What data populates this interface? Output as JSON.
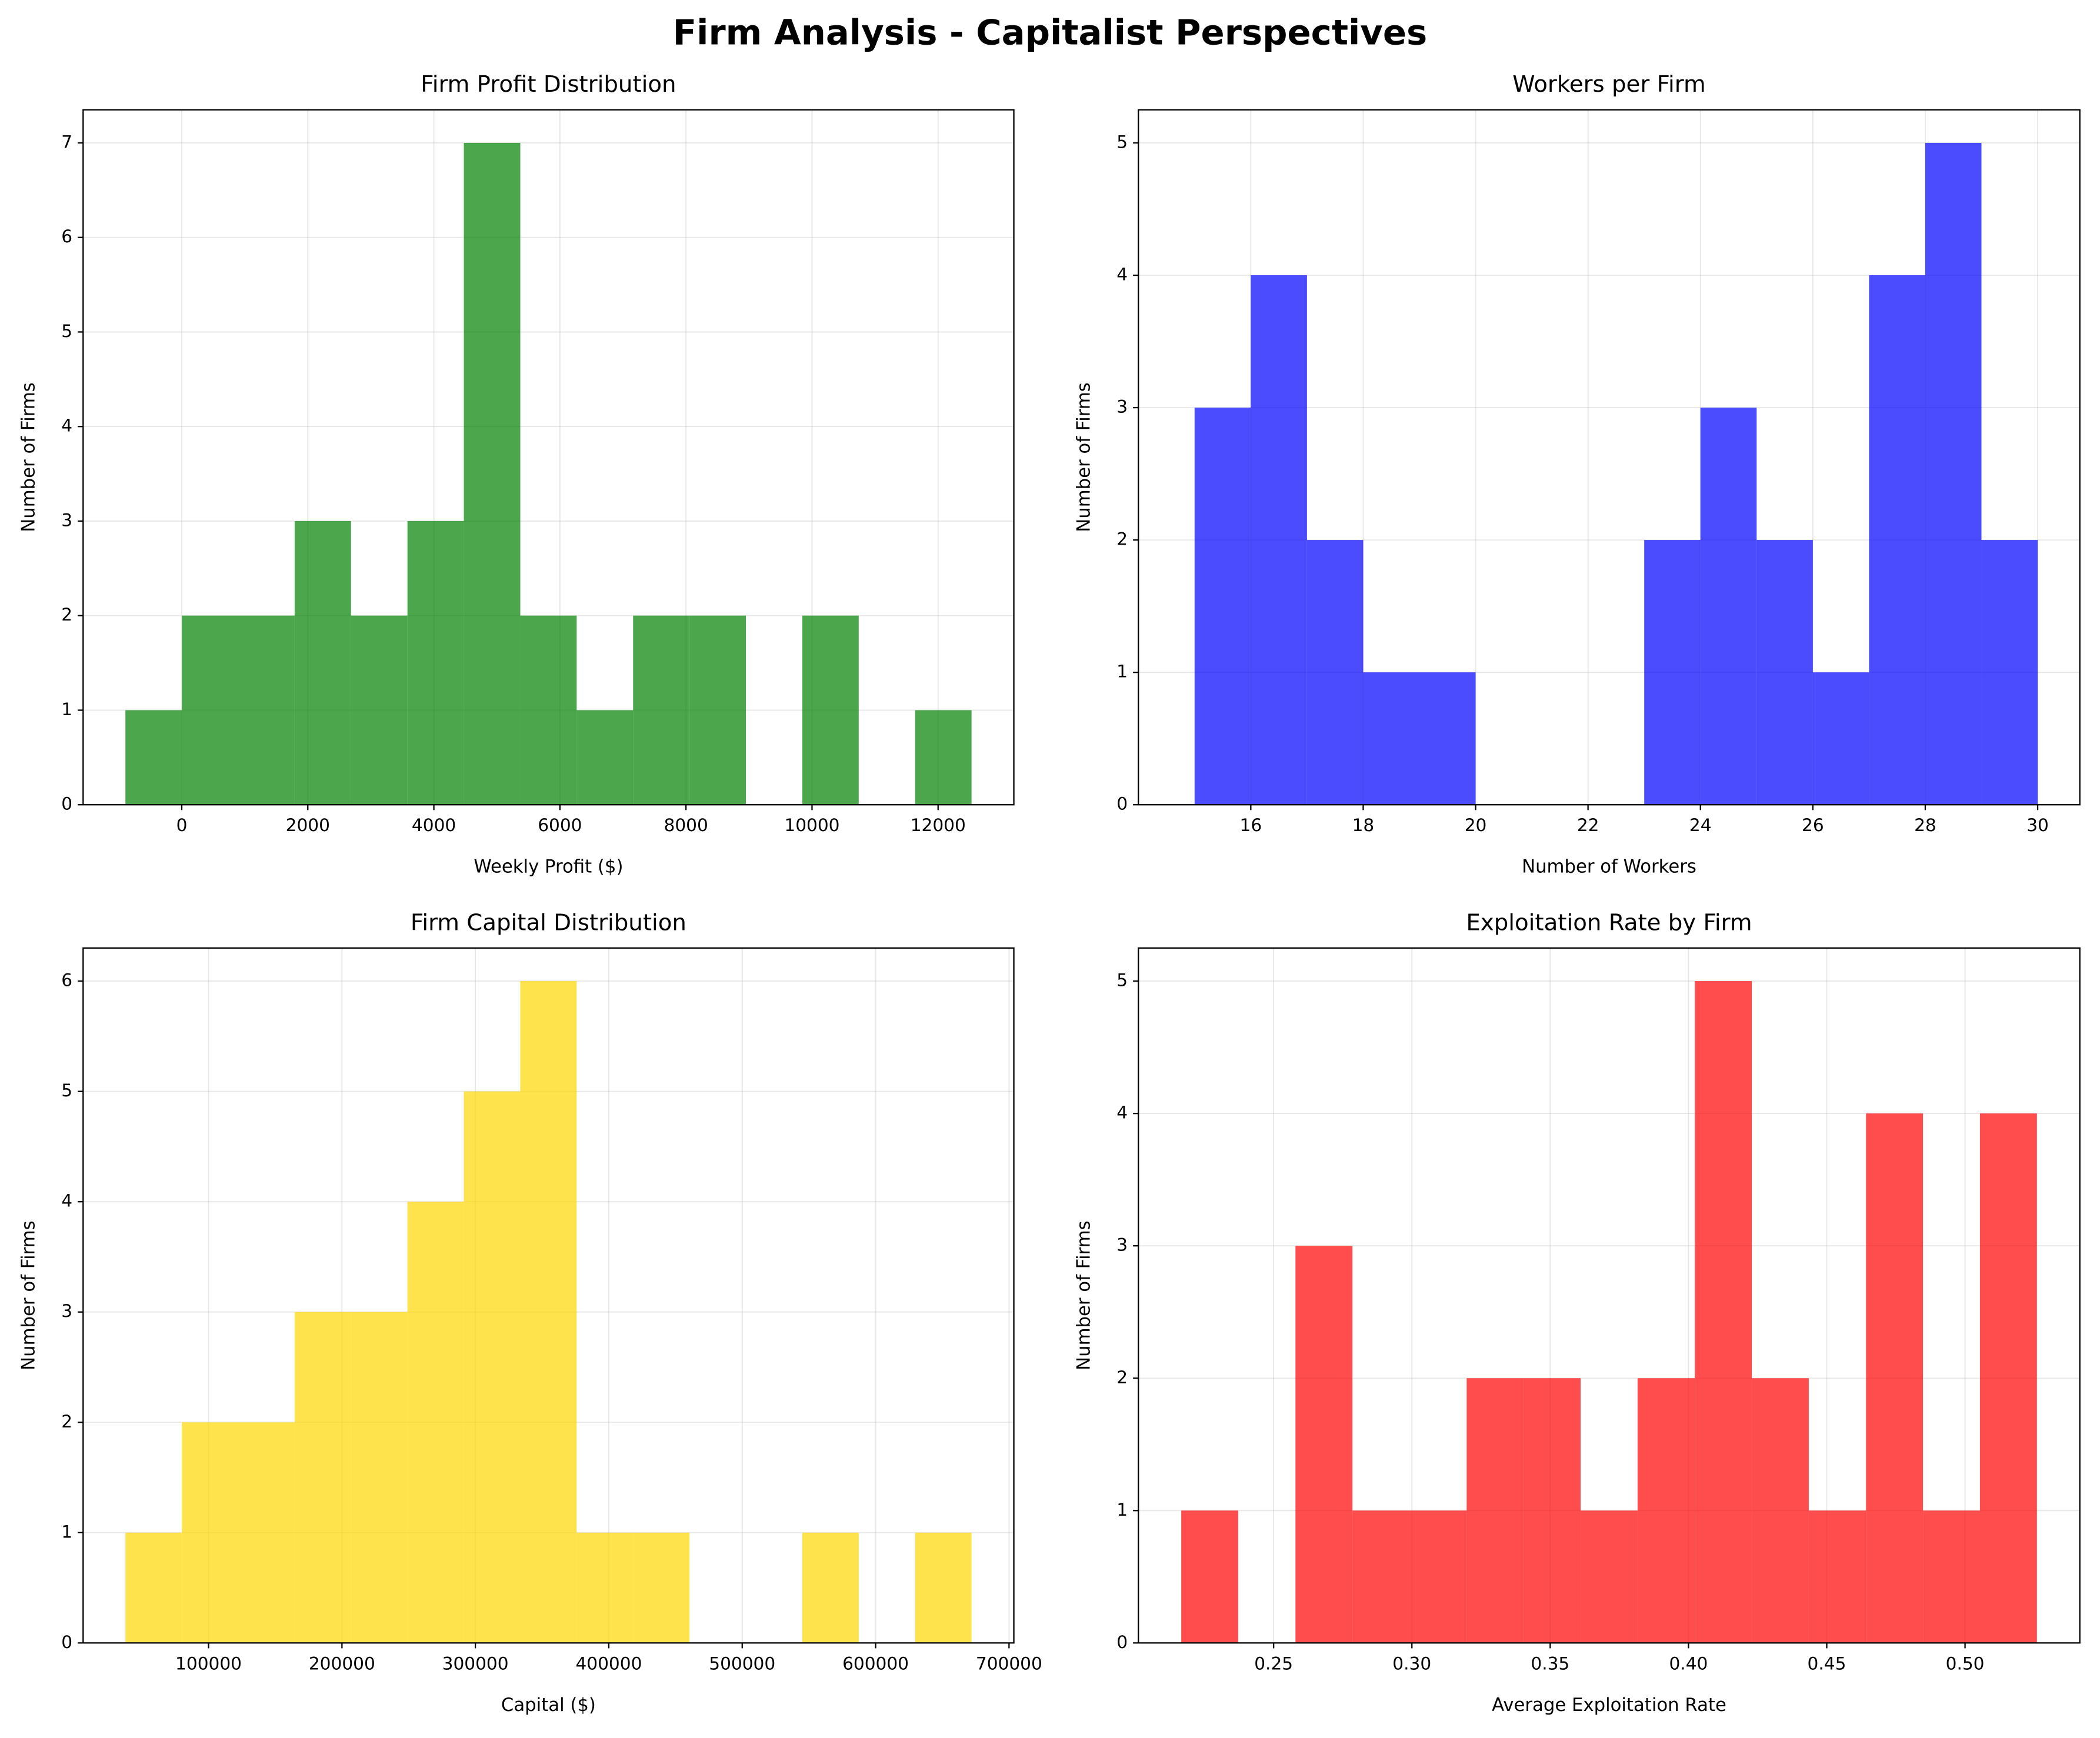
{
  "title": "Firm Analysis - Capitalist Perspectives",
  "chart_data": [
    {
      "type": "histogram",
      "title": "Firm Profit Distribution",
      "xlabel": "Weekly Profit ($)",
      "ylabel": "Number of Firms",
      "bins": [
        -894,
        1,
        896,
        1791,
        2686,
        3581,
        4476,
        5371,
        6266,
        7161,
        8056,
        8951,
        9846,
        10741,
        11636,
        12531
      ],
      "values": [
        1,
        2,
        2,
        3,
        2,
        3,
        7,
        2,
        1,
        2,
        2,
        0,
        2,
        0,
        1
      ],
      "color": "#008000",
      "alpha": 0.7,
      "grid": true,
      "xlim": [
        -1565,
        13202
      ],
      "ylim": [
        0,
        7.35
      ],
      "xticks": [
        0,
        2000,
        4000,
        6000,
        8000,
        10000,
        12000
      ],
      "yticks": [
        0,
        1,
        2,
        3,
        4,
        5,
        6,
        7
      ]
    },
    {
      "type": "histogram",
      "title": "Workers per Firm",
      "xlabel": "Number of Workers",
      "ylabel": "Number of Firms",
      "bins": [
        15,
        16,
        17,
        18,
        19,
        20,
        21,
        22,
        23,
        24,
        25,
        26,
        27,
        28,
        29,
        30
      ],
      "values": [
        3,
        4,
        2,
        1,
        1,
        0,
        0,
        0,
        2,
        3,
        2,
        1,
        4,
        5,
        2
      ],
      "color": "#0000ff",
      "alpha": 0.7,
      "grid": true,
      "xlim": [
        14.0,
        30.75
      ],
      "ylim": [
        0,
        5.25
      ],
      "xticks": [
        16,
        18,
        20,
        22,
        24,
        26,
        28,
        30
      ],
      "yticks": [
        0,
        1,
        2,
        3,
        4,
        5
      ]
    },
    {
      "type": "histogram",
      "title": "Firm Capital Distribution",
      "xlabel": "Capital ($)",
      "ylabel": "Number of Firms",
      "bins": [
        37700,
        79980,
        122260,
        164540,
        206820,
        249100,
        291380,
        333660,
        375940,
        418220,
        460500,
        502780,
        545060,
        587340,
        629620,
        671900
      ],
      "values": [
        1,
        2,
        2,
        3,
        3,
        4,
        5,
        6,
        1,
        1,
        0,
        0,
        1,
        0,
        1
      ],
      "color": "#ffd700",
      "alpha": 0.7,
      "grid": true,
      "xlim": [
        5990,
        703610
      ],
      "ylim": [
        0,
        6.3
      ],
      "xticks": [
        100000,
        200000,
        300000,
        400000,
        500000,
        600000,
        700000
      ],
      "yticks": [
        0,
        1,
        2,
        3,
        4,
        5,
        6
      ]
    },
    {
      "type": "histogram",
      "title": "Exploitation Rate by Firm",
      "xlabel": "Average Exploitation Rate",
      "ylabel": "Number of Firms",
      "bins": [
        0.2166,
        0.2372,
        0.2579,
        0.2785,
        0.2991,
        0.3198,
        0.3404,
        0.361,
        0.3816,
        0.4023,
        0.4229,
        0.4435,
        0.4642,
        0.4848,
        0.5054,
        0.526
      ],
      "values": [
        1,
        0,
        3,
        1,
        1,
        2,
        2,
        1,
        2,
        5,
        2,
        1,
        4,
        1,
        4
      ],
      "color": "#ff0000",
      "alpha": 0.7,
      "grid": true,
      "xlim": [
        0.2011,
        0.5415
      ],
      "ylim": [
        0,
        5.25
      ],
      "xticks": [
        0.25,
        {
          "value": 0.3,
          "label": "0.30"
        },
        0.35,
        {
          "value": 0.4,
          "label": "0.40"
        },
        0.45,
        {
          "value": 0.5,
          "label": "0.50"
        }
      ],
      "yticks": [
        0,
        1,
        2,
        3,
        4,
        5
      ]
    }
  ]
}
